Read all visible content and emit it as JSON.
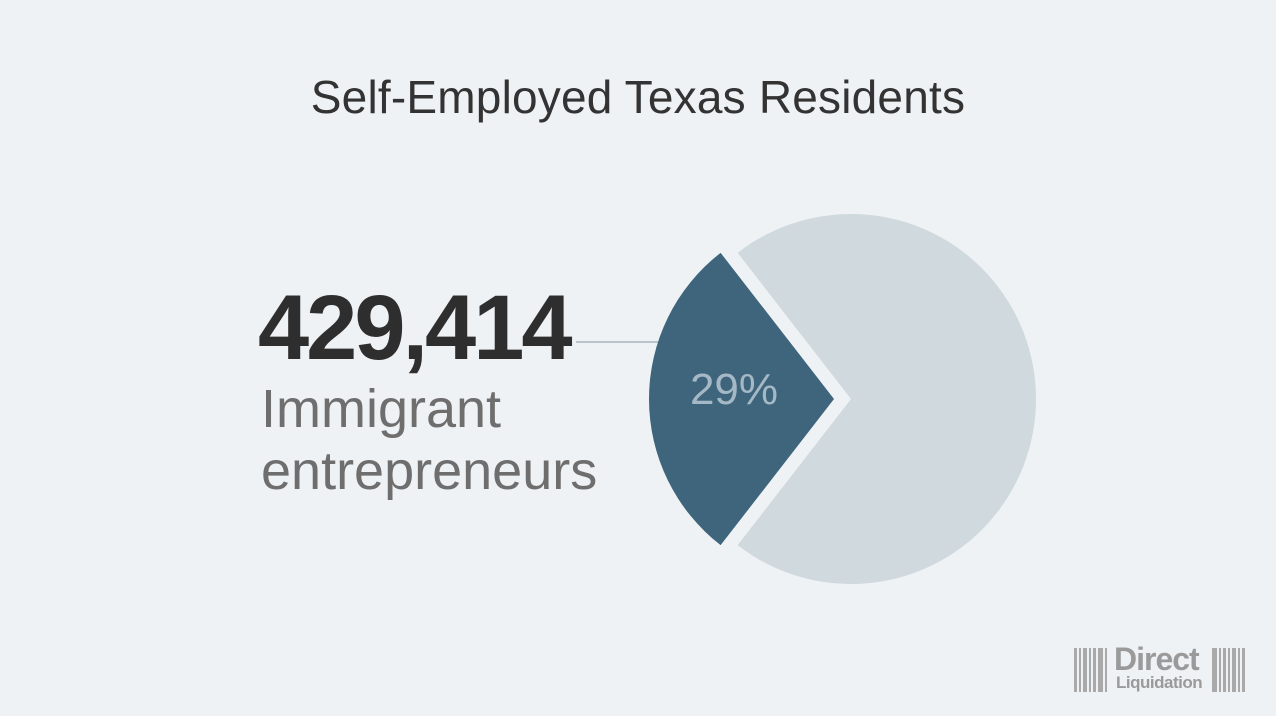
{
  "header": {
    "title": "Self-Employed Texas Residents"
  },
  "stat": {
    "value": "429,414",
    "label_line1": "Immigrant",
    "label_line2": "entrepreneurs"
  },
  "logo": {
    "word1": "Direct",
    "word2": "Liquidation"
  },
  "colors": {
    "background": "#eff2f5",
    "highlight_slice": "#3e657c",
    "rest_slice": "#cfd9de",
    "percent_label": "#a5b8c5",
    "leader_line": "#b9c4cb"
  },
  "chart_data": {
    "type": "pie",
    "title": "Self-Employed Texas Residents",
    "slices": [
      {
        "value": 29,
        "label": "29%",
        "exploded": true
      },
      {
        "value": 71,
        "label": "",
        "exploded": false
      }
    ],
    "legend": "none",
    "annotation": "429,414 Immigrant entrepreneurs"
  }
}
